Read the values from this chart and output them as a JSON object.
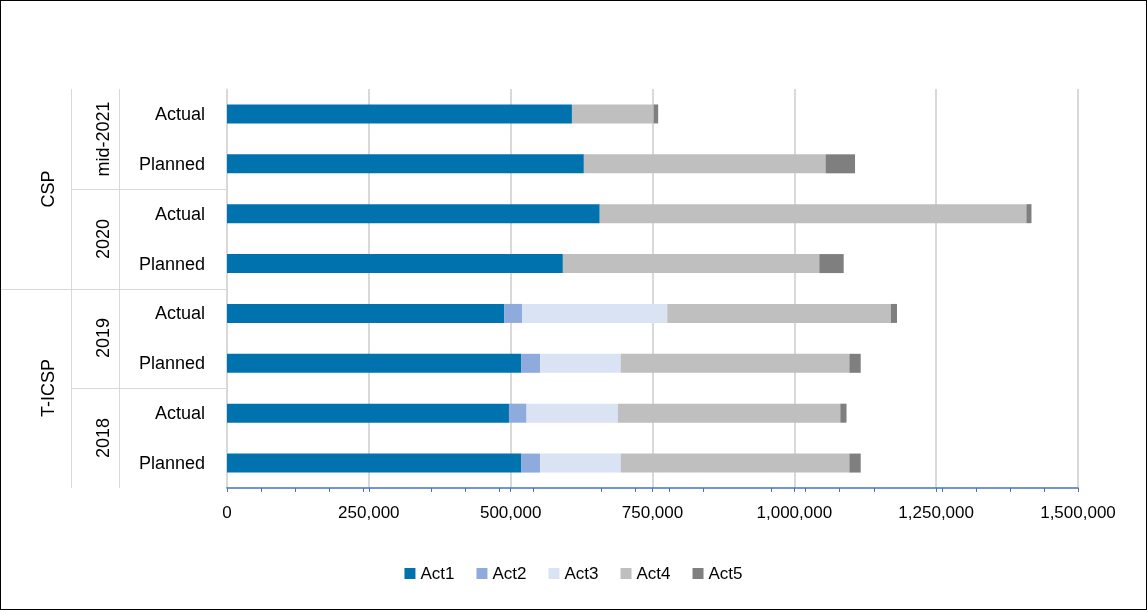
{
  "chart_data": {
    "type": "bar",
    "orientation": "horizontal",
    "stacked": true,
    "categories": [
      "Actual",
      "Planned",
      "Actual",
      "Planned",
      "Actual",
      "Planned",
      "Actual",
      "Planned"
    ],
    "series": [
      {
        "name": "Act1",
        "color": "#0073ae",
        "values": [
          608000,
          629000,
          657000,
          592000,
          489000,
          519000,
          497000,
          519000
        ]
      },
      {
        "name": "Act2",
        "color": "#8faadc",
        "values": [
          0,
          0,
          0,
          0,
          31000,
          33000,
          31000,
          33000
        ]
      },
      {
        "name": "Act3",
        "color": "#dae3f3",
        "values": [
          0,
          0,
          0,
          0,
          256000,
          142000,
          161000,
          142000
        ]
      },
      {
        "name": "Act4",
        "color": "#bfbfbf",
        "values": [
          144000,
          426000,
          752000,
          452000,
          394000,
          403000,
          392000,
          403000
        ]
      },
      {
        "name": "Act5",
        "color": "#7f7f7f",
        "values": [
          8000,
          52000,
          9000,
          43000,
          11000,
          20000,
          11000,
          20000
        ]
      }
    ],
    "xlim": [
      0,
      1500000
    ],
    "xticks": [
      0,
      {
        "value": 250000,
        "label": "250,000"
      },
      {
        "value": 500000,
        "label": "500,000"
      },
      {
        "value": 750000,
        "label": "750,000"
      },
      {
        "value": 1000000,
        "label": "1,000,000"
      },
      {
        "value": 1250000,
        "label": "1,250,000"
      },
      {
        "value": 1500000,
        "label": "1,500,000"
      }
    ],
    "grid": "x",
    "legend": "bottom",
    "annotations": [
      "mid-2021",
      "2020",
      "2019",
      "2018",
      "CSP",
      "T-ICSP"
    ]
  }
}
